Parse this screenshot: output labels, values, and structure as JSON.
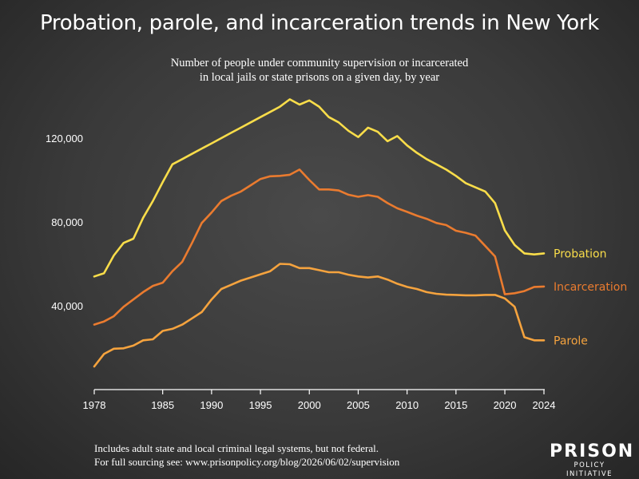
{
  "chart_data": {
    "type": "line",
    "title": "Probation, parole, and incarceration trends in New York",
    "subtitle_lines": [
      "Number of people under community supervision or incarcerated",
      "in local jails or state prisons on a given day, by year"
    ],
    "x": [
      1978,
      1979,
      1980,
      1981,
      1982,
      1983,
      1984,
      1985,
      1986,
      1987,
      1988,
      1989,
      1990,
      1991,
      1992,
      1993,
      1994,
      1995,
      1996,
      1997,
      1998,
      1999,
      2000,
      2001,
      2002,
      2003,
      2004,
      2005,
      2006,
      2007,
      2008,
      2009,
      2010,
      2011,
      2012,
      2013,
      2014,
      2015,
      2016,
      2017,
      2018,
      2019,
      2020,
      2021,
      2022,
      2023,
      2024
    ],
    "xticks": [
      1978,
      1985,
      1990,
      1995,
      2000,
      2005,
      2010,
      2015,
      2020,
      2024
    ],
    "xlim": [
      1978,
      2024
    ],
    "yticks": [
      40000,
      80000,
      120000
    ],
    "ytick_labels": [
      "40,000",
      "80,000",
      "120,000"
    ],
    "ylim": [
      10000,
      145000
    ],
    "grid": false,
    "series": [
      {
        "name": "Probation",
        "color": "#f9dd4a",
        "values": [
          54000,
          55500,
          64000,
          70000,
          72000,
          82000,
          90000,
          99000,
          107500,
          110000,
          112500,
          115000,
          117500,
          120000,
          122500,
          125000,
          127500,
          130000,
          132500,
          135000,
          138500,
          136000,
          138000,
          135000,
          130000,
          127500,
          123500,
          120500,
          125000,
          123000,
          118500,
          121000,
          116500,
          113000,
          110000,
          107500,
          105000,
          102000,
          98500,
          96500,
          94500,
          89000,
          76000,
          69000,
          65000,
          64500,
          65000
        ]
      },
      {
        "name": "Incarceration",
        "color": "#ea7b2f",
        "values": [
          31000,
          32500,
          35000,
          39500,
          43000,
          46500,
          49500,
          51000,
          56500,
          61000,
          70000,
          79500,
          84500,
          90000,
          92500,
          94500,
          97500,
          100500,
          101800,
          102000,
          102500,
          105000,
          100000,
          95500,
          95500,
          95000,
          93000,
          92000,
          92800,
          92000,
          89000,
          86500,
          84800,
          83000,
          81500,
          79500,
          78500,
          75800,
          74800,
          73500,
          68500,
          63500,
          45500,
          46000,
          47000,
          49000,
          49200
        ]
      },
      {
        "name": "Parole",
        "color": "#f5a33e",
        "values": [
          11000,
          17000,
          19500,
          19700,
          21000,
          23500,
          24000,
          28000,
          29000,
          31000,
          34000,
          37000,
          43000,
          48000,
          50000,
          52000,
          53500,
          55000,
          56500,
          60000,
          59800,
          58000,
          58000,
          57000,
          56000,
          56000,
          54800,
          54000,
          53500,
          54000,
          52500,
          50500,
          49000,
          48000,
          46500,
          45700,
          45300,
          45200,
          45000,
          45000,
          45200,
          45200,
          43500,
          39500,
          25000,
          23500,
          23500
        ]
      }
    ]
  },
  "footer": {
    "line1": "Includes adult state and local criminal legal systems, but not federal.",
    "line2": "For full sourcing see: www.prisonpolicy.org/blog/2026/06/02/supervision"
  },
  "logo": {
    "line1": "PRISON",
    "line2": "POLICY INITIATIVE"
  }
}
